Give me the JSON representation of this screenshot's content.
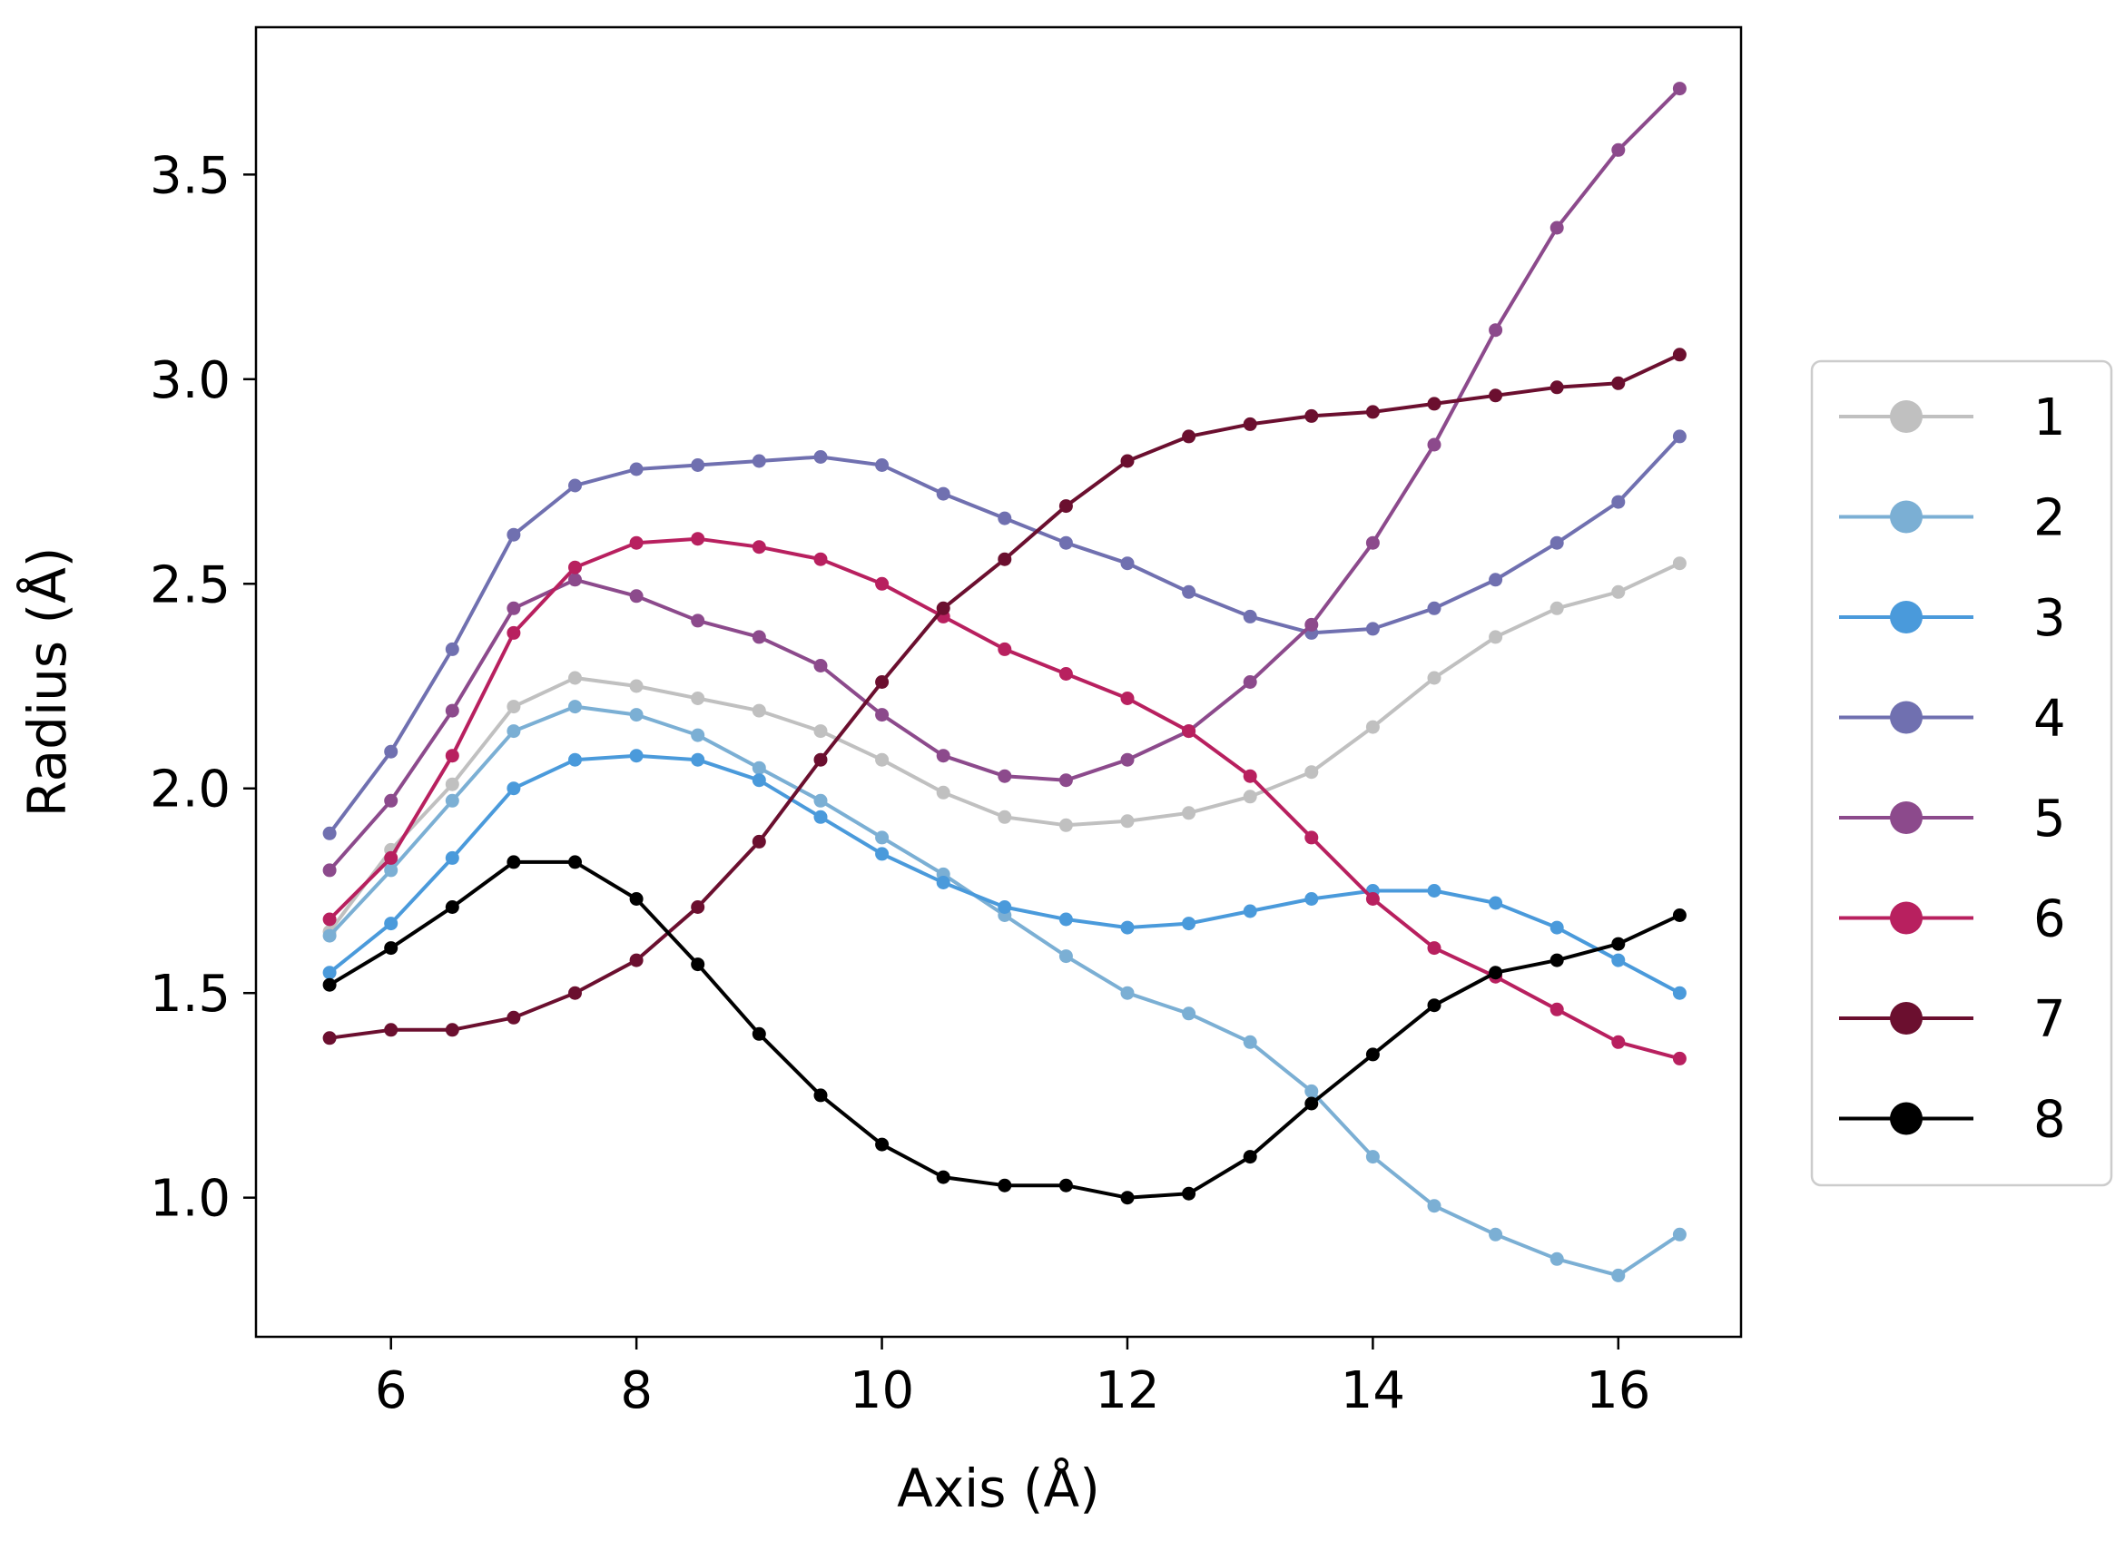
{
  "chart_data": {
    "type": "line",
    "title": "",
    "xlabel": "Axis (Å)",
    "ylabel": "Radius (Å)",
    "xlim": [
      4.9,
      17.0
    ],
    "ylim": [
      0.66,
      3.86
    ],
    "xticks": [
      6,
      8,
      10,
      12,
      14,
      16
    ],
    "yticks": [
      1.0,
      1.5,
      2.0,
      2.5,
      3.0,
      3.5
    ],
    "xtick_labels": [
      "6",
      "8",
      "10",
      "12",
      "14",
      "16"
    ],
    "ytick_labels": [
      "1.0",
      "1.5",
      "2.0",
      "2.5",
      "3.0",
      "3.5"
    ],
    "grid": false,
    "legend_position": "right, outside plot",
    "x": [
      5.5,
      6.0,
      6.5,
      7.0,
      7.5,
      8.0,
      8.5,
      9.0,
      9.5,
      10.0,
      10.5,
      11.0,
      11.5,
      12.0,
      12.5,
      13.0,
      13.5,
      14.0,
      14.5,
      15.0,
      15.5,
      16.0,
      16.5
    ],
    "series": [
      {
        "name": "1",
        "color": "#c0c0c0",
        "values": [
          1.65,
          1.85,
          2.01,
          2.2,
          2.27,
          2.25,
          2.22,
          2.19,
          2.14,
          2.07,
          1.99,
          1.93,
          1.91,
          1.92,
          1.94,
          1.98,
          2.04,
          2.15,
          2.27,
          2.37,
          2.44,
          2.48,
          2.55
        ]
      },
      {
        "name": "2",
        "color": "#7bafd4",
        "values": [
          1.64,
          1.8,
          1.97,
          2.14,
          2.2,
          2.18,
          2.13,
          2.05,
          1.97,
          1.88,
          1.79,
          1.69,
          1.59,
          1.5,
          1.45,
          1.38,
          1.26,
          1.1,
          0.98,
          0.91,
          0.85,
          0.81,
          0.91
        ]
      },
      {
        "name": "3",
        "color": "#4a9adb",
        "values": [
          1.55,
          1.67,
          1.83,
          2.0,
          2.07,
          2.08,
          2.07,
          2.02,
          1.93,
          1.84,
          1.77,
          1.71,
          1.68,
          1.66,
          1.67,
          1.7,
          1.73,
          1.75,
          1.75,
          1.72,
          1.66,
          1.58,
          1.5
        ]
      },
      {
        "name": "4",
        "color": "#7070b0",
        "values": [
          1.89,
          2.09,
          2.34,
          2.62,
          2.74,
          2.78,
          2.79,
          2.8,
          2.81,
          2.79,
          2.72,
          2.66,
          2.6,
          2.55,
          2.48,
          2.42,
          2.38,
          2.39,
          2.44,
          2.51,
          2.6,
          2.7,
          2.86
        ]
      },
      {
        "name": "5",
        "color": "#8c4a8c",
        "values": [
          1.8,
          1.97,
          2.19,
          2.44,
          2.51,
          2.47,
          2.41,
          2.37,
          2.3,
          2.18,
          2.08,
          2.03,
          2.02,
          2.07,
          2.14,
          2.26,
          2.4,
          2.6,
          2.84,
          3.12,
          3.37,
          3.56,
          3.71
        ]
      },
      {
        "name": "6",
        "color": "#b8205f",
        "values": [
          1.68,
          1.83,
          2.08,
          2.38,
          2.54,
          2.6,
          2.61,
          2.59,
          2.56,
          2.5,
          2.42,
          2.34,
          2.28,
          2.22,
          2.14,
          2.03,
          1.88,
          1.73,
          1.61,
          1.54,
          1.46,
          1.38,
          1.34
        ]
      },
      {
        "name": "7",
        "color": "#6b0f2f",
        "values": [
          1.39,
          1.41,
          1.41,
          1.44,
          1.5,
          1.58,
          1.71,
          1.87,
          2.07,
          2.26,
          2.44,
          2.56,
          2.69,
          2.8,
          2.86,
          2.89,
          2.91,
          2.92,
          2.94,
          2.96,
          2.98,
          2.99,
          3.06
        ]
      },
      {
        "name": "8",
        "color": "#000000",
        "values": [
          1.52,
          1.61,
          1.71,
          1.82,
          1.82,
          1.73,
          1.57,
          1.4,
          1.25,
          1.13,
          1.05,
          1.03,
          1.03,
          1.0,
          1.01,
          1.1,
          1.23,
          1.35,
          1.47,
          1.55,
          1.58,
          1.62,
          1.69
        ]
      }
    ]
  }
}
